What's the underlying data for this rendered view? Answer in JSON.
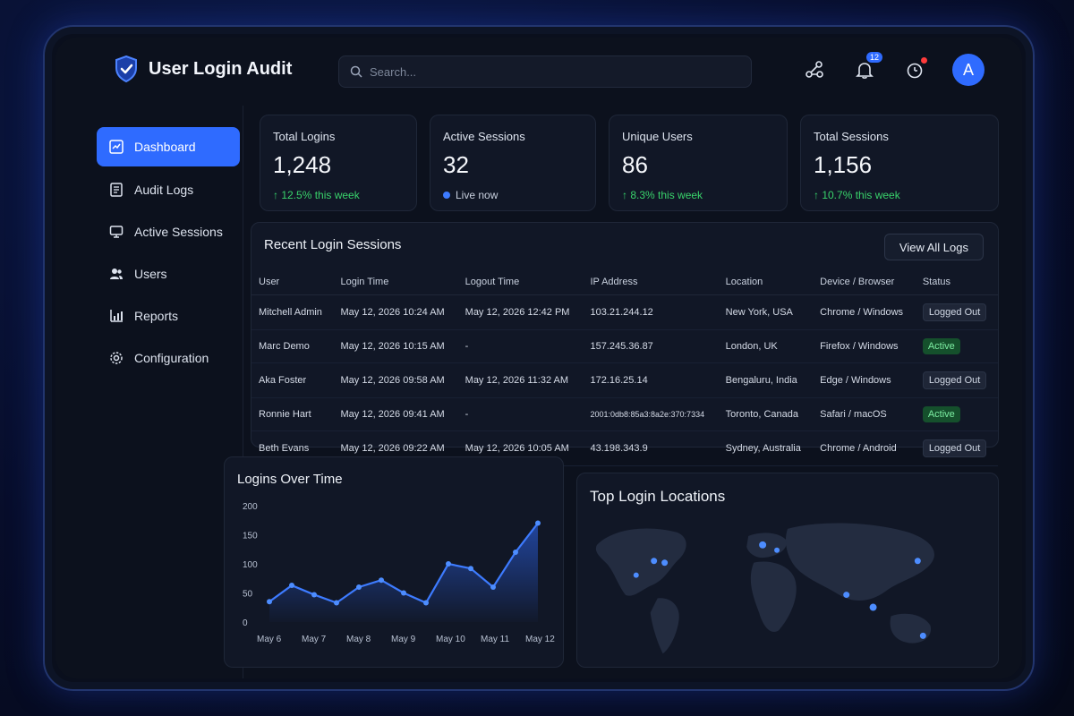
{
  "app": {
    "title": "User Login Audit"
  },
  "search": {
    "placeholder": "Search..."
  },
  "header": {
    "notifications_count": "12",
    "avatar_initial": "A"
  },
  "sidebar": {
    "items": [
      {
        "label": "Dashboard",
        "icon": "dashboard-icon"
      },
      {
        "label": "Audit Logs",
        "icon": "audit-logs-icon"
      },
      {
        "label": "Active Sessions",
        "icon": "monitor-icon"
      },
      {
        "label": "Users",
        "icon": "users-icon"
      },
      {
        "label": "Reports",
        "icon": "chart-icon"
      },
      {
        "label": "Configuration",
        "icon": "gear-icon"
      }
    ]
  },
  "stats": [
    {
      "label": "Total Logins",
      "value": "1,248",
      "delta": "↑ 12.5% this week"
    },
    {
      "label": "Active Sessions",
      "value": "32",
      "live": "Live now"
    },
    {
      "label": "Unique Users",
      "value": "86",
      "delta": "↑ 8.3% this week"
    },
    {
      "label": "Total Sessions",
      "value": "1,156",
      "delta": "↑ 10.7% this week"
    }
  ],
  "sessions": {
    "title": "Recent Login Sessions",
    "view_all": "View All Logs",
    "columns": [
      "User",
      "Login Time",
      "Logout Time",
      "IP Address",
      "Location",
      "Device / Browser",
      "Status"
    ],
    "rows": [
      {
        "user": "Mitchell Admin",
        "login": "May 12, 2026 10:24 AM",
        "logout": "May 12, 2026 12:42 PM",
        "ip": "103.21.244.12",
        "location": "New York, USA",
        "device": "Chrome / Windows",
        "status": "Logged Out",
        "active": false
      },
      {
        "user": "Marc Demo",
        "login": "May 12, 2026 10:15 AM",
        "logout": "-",
        "ip": "157.245.36.87",
        "location": "London, UK",
        "device": "Firefox / Windows",
        "status": "Active",
        "active": true
      },
      {
        "user": "Aka Foster",
        "login": "May 12, 2026 09:58 AM",
        "logout": "May 12, 2026 11:32 AM",
        "ip": "172.16.25.14",
        "location": "Bengaluru, India",
        "device": "Edge / Windows",
        "status": "Logged Out",
        "active": false
      },
      {
        "user": "Ronnie Hart",
        "login": "May 12, 2026 09:41 AM",
        "logout": "-",
        "ip": "2001:0db8:85a3:8a2e:370:7334",
        "location": "Toronto, Canada",
        "device": "Safari / macOS",
        "status": "Active",
        "active": true
      },
      {
        "user": "Beth Evans",
        "login": "May 12, 2026 09:22 AM",
        "logout": "May 12, 2026 10:05 AM",
        "ip": "43.198.343.9",
        "location": "Sydney, Australia",
        "device": "Chrome / Android",
        "status": "Logged Out",
        "active": false
      }
    ]
  },
  "chart_data": {
    "type": "area",
    "title": "Logins Over Time",
    "categories": [
      "May 6",
      "May 7",
      "May 8",
      "May 9",
      "May 10",
      "May 11",
      "May 12"
    ],
    "x": [
      6,
      6.5,
      7,
      7.5,
      8,
      8.5,
      9,
      9.5,
      10,
      10.5,
      11,
      11.5,
      12
    ],
    "values": [
      35,
      63,
      47,
      33,
      60,
      72,
      50,
      33,
      100,
      92,
      60,
      120,
      170
    ],
    "yticks": [
      0,
      50,
      100,
      150,
      200
    ],
    "ylim": [
      0,
      200
    ],
    "xlabel": "",
    "ylabel": ""
  },
  "map": {
    "title": "Top Login Locations",
    "hotspots": [
      "New York",
      "London",
      "Toronto",
      "Bengaluru",
      "Sydney",
      "Tokyo",
      "Singapore",
      "Frankfurt"
    ]
  },
  "colors": {
    "accent": "#2f6bff",
    "success": "#39d36b",
    "bg": "#0c111d"
  }
}
